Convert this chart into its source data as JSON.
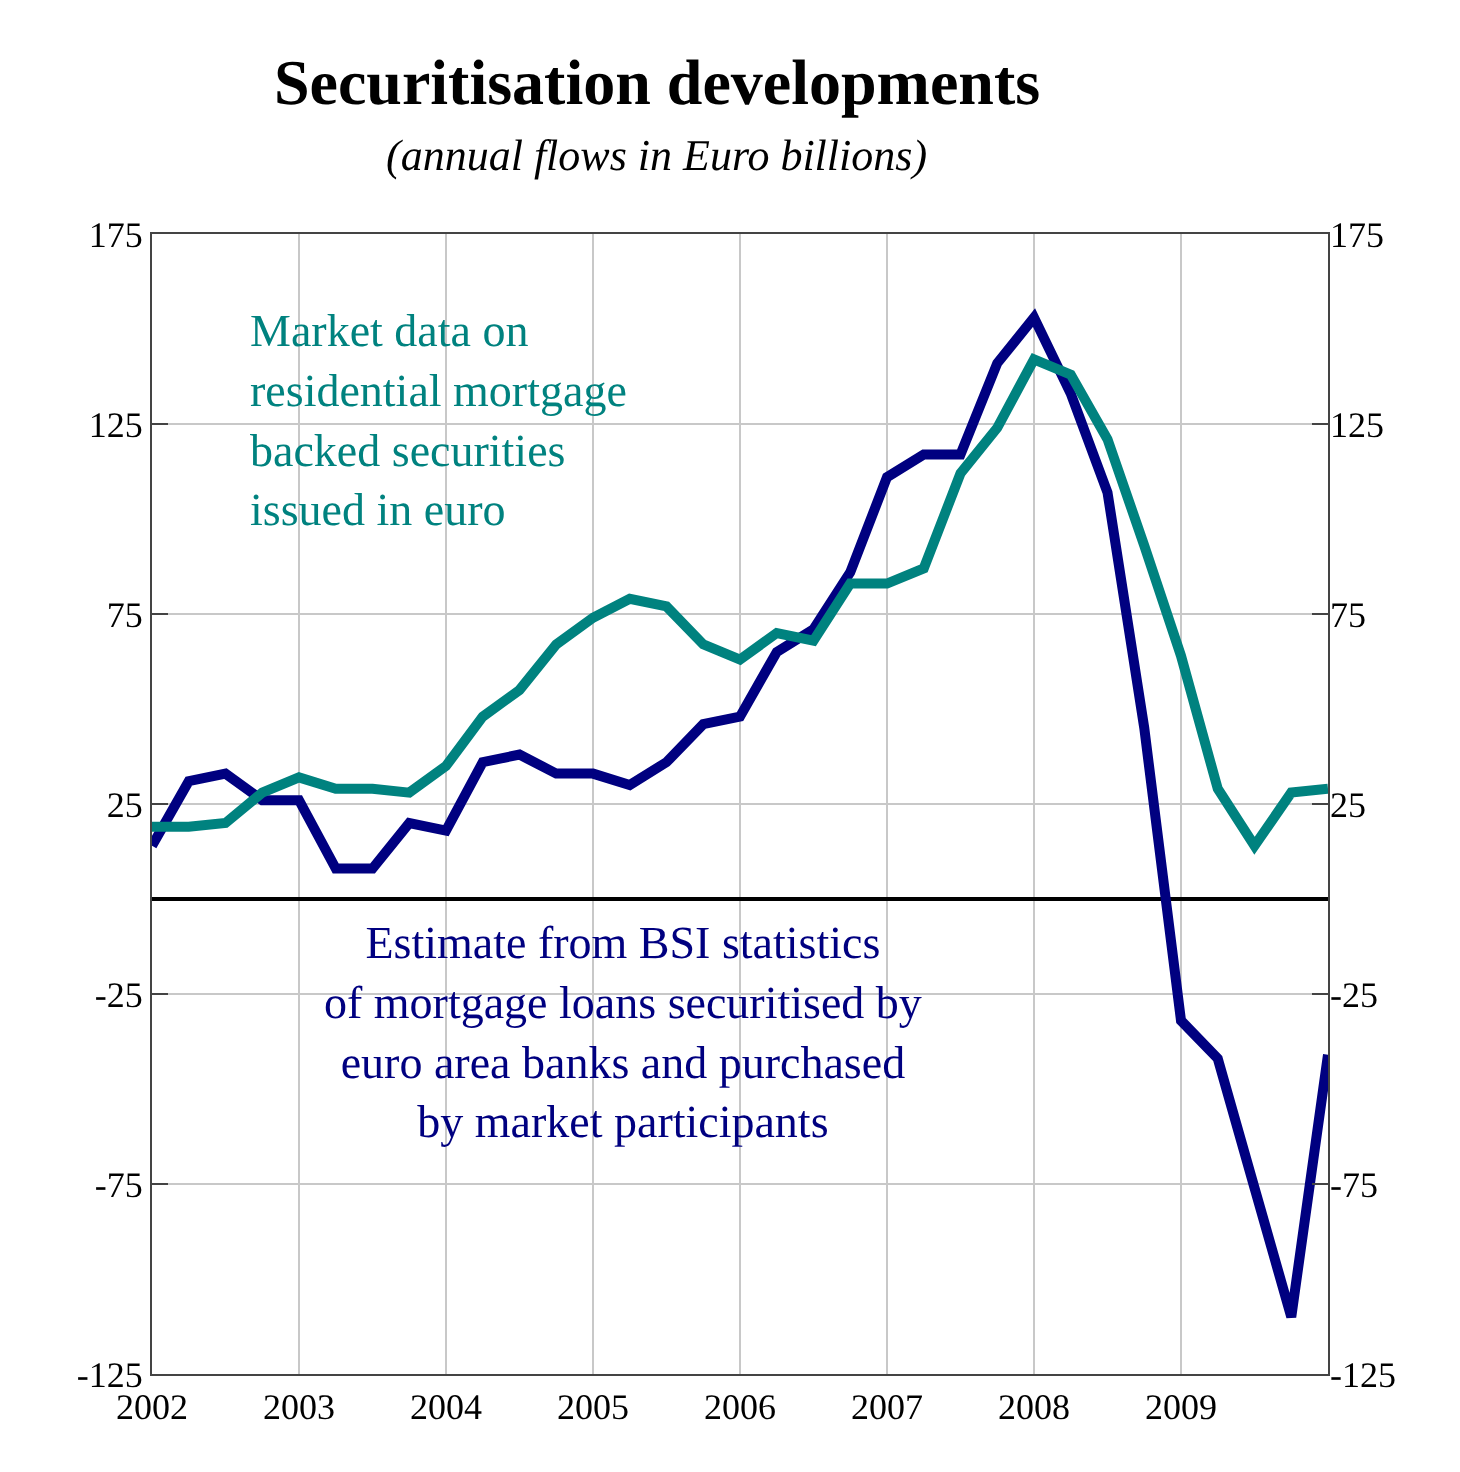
{
  "chart_data": {
    "type": "line",
    "title": "Securitisation developments",
    "subtitle": "(annual flows in Euro billions)",
    "x": [
      2002.0,
      2002.25,
      2002.5,
      2002.75,
      2003.0,
      2003.25,
      2003.5,
      2003.75,
      2004.0,
      2004.25,
      2004.5,
      2004.75,
      2005.0,
      2005.25,
      2005.5,
      2005.75,
      2006.0,
      2006.25,
      2006.5,
      2006.75,
      2007.0,
      2007.25,
      2007.5,
      2007.75,
      2008.0,
      2008.25,
      2008.5,
      2008.75,
      2009.0,
      2009.25,
      2009.5,
      2009.75,
      2010.0
    ],
    "series": [
      {
        "color": "#000080",
        "values": [
          14,
          31,
          33,
          26,
          26,
          8,
          8,
          20,
          18,
          36,
          38,
          33,
          33,
          30,
          36,
          46,
          48,
          65,
          71,
          86,
          111,
          117,
          117,
          141,
          153,
          133,
          107,
          45,
          -32,
          -42,
          -76,
          -110,
          -41
        ]
      },
      {
        "color": "#00827f",
        "values": [
          19,
          19,
          20,
          28,
          32,
          29,
          29,
          28,
          35,
          48,
          55,
          67,
          74,
          79,
          77,
          67,
          63,
          70,
          68,
          83,
          83,
          87,
          112,
          124,
          142,
          138,
          121,
          93,
          64,
          29,
          14,
          28,
          29
        ]
      }
    ],
    "annotations": [
      "Market data on\nresidential mortgage\nbacked securities\nissued in euro",
      "Estimate from BSI statistics\nof mortgage loans securitised by\neuro area banks and purchased\nby market participants"
    ],
    "xlim": [
      2002,
      2010
    ],
    "xticks": [
      2002,
      2003,
      2004,
      2005,
      2006,
      2007,
      2008,
      2009
    ],
    "ylim": [
      -125,
      175
    ],
    "yticks": [
      -125,
      -75,
      -25,
      25,
      75,
      125,
      175
    ],
    "y2lim": [
      -125,
      175
    ],
    "y2ticks": [
      -125,
      -75,
      -25,
      25,
      75,
      125,
      175
    ],
    "grid": true,
    "marker": "none",
    "line_style": "solid"
  }
}
